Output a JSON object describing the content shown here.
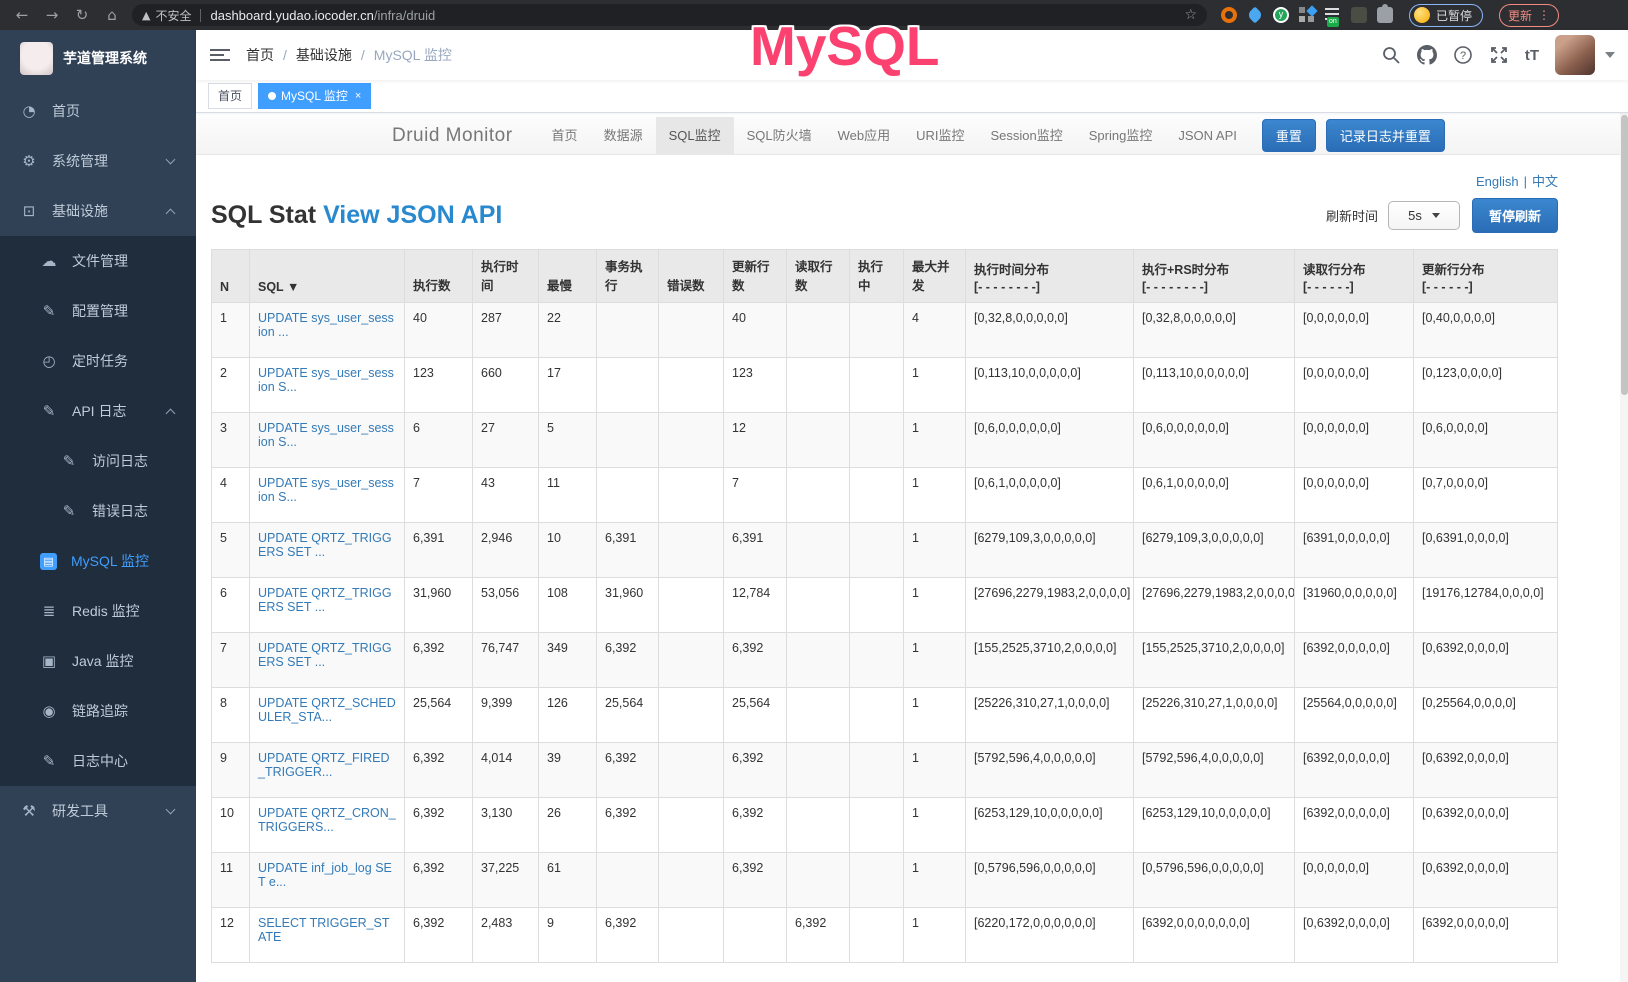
{
  "browser": {
    "security_label": "不安全",
    "url_host": "dashboard.yudao.iocoder.cn",
    "url_path": "/infra/druid",
    "paused_badge": "已暂停",
    "update_button": "更新",
    "extension_on_badge": "on",
    "extension_icons": [
      "bookmark-star-icon",
      "orange-ring-extension-icon",
      "blue-drop-extension-icon",
      "green-check-extension-icon",
      "grid-extension-icon",
      "list-on-extension-icon",
      "dark-extension-icon",
      "puzzle-extensions-icon"
    ]
  },
  "annotation": {
    "text": "MySQL",
    "color": "#fb4170"
  },
  "sidebar": {
    "title": "芋道管理系统",
    "items": [
      {
        "id": "home",
        "label": "首页",
        "icon": "dashboard-icon",
        "level": 0,
        "sub": false
      },
      {
        "id": "system-management",
        "label": "系统管理",
        "icon": "gear-icon",
        "level": 0,
        "chevron": "down",
        "sub": false
      },
      {
        "id": "infrastructure",
        "label": "基础设施",
        "icon": "infrastructure-icon",
        "level": 0,
        "chevron": "up",
        "sub": false
      },
      {
        "id": "file-management",
        "label": "文件管理",
        "icon": "cloud-upload-icon",
        "level": 1,
        "sub": true
      },
      {
        "id": "config-management",
        "label": "配置管理",
        "icon": "edit-icon",
        "level": 1,
        "sub": true
      },
      {
        "id": "scheduled-tasks",
        "label": "定时任务",
        "icon": "timer-icon",
        "level": 1,
        "sub": true
      },
      {
        "id": "api-logs",
        "label": "API 日志",
        "icon": "edit-square-icon",
        "level": 1,
        "chevron": "up",
        "sub": true
      },
      {
        "id": "access-logs",
        "label": "访问日志",
        "icon": "edit-square-icon",
        "level": 2,
        "sub": true
      },
      {
        "id": "error-logs",
        "label": "错误日志",
        "icon": "edit-square-icon",
        "level": 2,
        "sub": true
      },
      {
        "id": "mysql-monitor",
        "label": "MySQL 监控",
        "icon": "mysql-monitor-icon",
        "level": 1,
        "sub": true,
        "active": true
      },
      {
        "id": "redis-monitor",
        "label": "Redis 监控",
        "icon": "layers-icon",
        "level": 1,
        "sub": true
      },
      {
        "id": "java-monitor",
        "label": "Java 监控",
        "icon": "monitor-icon",
        "level": 1,
        "sub": true
      },
      {
        "id": "trace",
        "label": "链路追踪",
        "icon": "eye-icon",
        "level": 1,
        "sub": true
      },
      {
        "id": "log-center",
        "label": "日志中心",
        "icon": "edit-square-icon",
        "level": 1,
        "sub": true
      },
      {
        "id": "dev-tools",
        "label": "研发工具",
        "icon": "toolbox-icon",
        "level": 0,
        "chevron": "down",
        "sub": false
      }
    ]
  },
  "header": {
    "breadcrumb": [
      "首页",
      "基础设施",
      "MySQL 监控"
    ]
  },
  "tags": [
    {
      "label": "首页",
      "active": false
    },
    {
      "label": "MySQL 监控",
      "active": true
    }
  ],
  "druid": {
    "brand": "Druid Monitor",
    "nav": [
      "首页",
      "数据源",
      "SQL监控",
      "SQL防火墙",
      "Web应用",
      "URI监控",
      "Session监控",
      "Spring监控",
      "JSON API"
    ],
    "active_nav": "SQL监控",
    "reset_button": "重置",
    "log_reset_button": "记录日志并重置",
    "lang_en": "English",
    "lang_zh": "中文",
    "title": "SQL Stat",
    "title_link": "View JSON API",
    "refresh_label": "刷新时间",
    "refresh_value": "5s",
    "pause_button": "暂停刷新"
  },
  "table": {
    "headers": [
      {
        "label": "N",
        "sub": ""
      },
      {
        "label": "SQL ▼",
        "sub": ""
      },
      {
        "label": "执行数",
        "sub": ""
      },
      {
        "label": "执行时间",
        "sub": ""
      },
      {
        "label": "最慢",
        "sub": ""
      },
      {
        "label": "事务执行",
        "sub": ""
      },
      {
        "label": "错误数",
        "sub": ""
      },
      {
        "label": "更新行数",
        "sub": ""
      },
      {
        "label": "读取行数",
        "sub": ""
      },
      {
        "label": "执行中",
        "sub": ""
      },
      {
        "label": "最大并发",
        "sub": ""
      },
      {
        "label": "执行时间分布",
        "sub": "[- - - - - - - -]"
      },
      {
        "label": "执行+RS时分布",
        "sub": "[- - - - - - - -]"
      },
      {
        "label": "读取行分布",
        "sub": "[- - - - - -]"
      },
      {
        "label": "更新行分布",
        "sub": "[- - - - - -]"
      }
    ],
    "rows": [
      [
        "1",
        "UPDATE sys_user_session ...",
        "40",
        "287",
        "22",
        "",
        "",
        "40",
        "",
        "",
        "4",
        "[0,32,8,0,0,0,0,0]",
        "[0,32,8,0,0,0,0,0]",
        "[0,0,0,0,0,0]",
        "[0,40,0,0,0,0]"
      ],
      [
        "2",
        "UPDATE sys_user_session S...",
        "123",
        "660",
        "17",
        "",
        "",
        "123",
        "",
        "",
        "1",
        "[0,113,10,0,0,0,0,0]",
        "[0,113,10,0,0,0,0,0]",
        "[0,0,0,0,0,0]",
        "[0,123,0,0,0,0]"
      ],
      [
        "3",
        "UPDATE sys_user_session S...",
        "6",
        "27",
        "5",
        "",
        "",
        "12",
        "",
        "",
        "1",
        "[0,6,0,0,0,0,0,0]",
        "[0,6,0,0,0,0,0,0]",
        "[0,0,0,0,0,0]",
        "[0,6,0,0,0,0]"
      ],
      [
        "4",
        "UPDATE sys_user_session S...",
        "7",
        "43",
        "11",
        "",
        "",
        "7",
        "",
        "",
        "1",
        "[0,6,1,0,0,0,0,0]",
        "[0,6,1,0,0,0,0,0]",
        "[0,0,0,0,0,0]",
        "[0,7,0,0,0,0]"
      ],
      [
        "5",
        "UPDATE QRTZ_TRIGGERS SET ...",
        "6,391",
        "2,946",
        "10",
        "6,391",
        "",
        "6,391",
        "",
        "",
        "1",
        "[6279,109,3,0,0,0,0,0]",
        "[6279,109,3,0,0,0,0,0]",
        "[6391,0,0,0,0,0]",
        "[0,6391,0,0,0,0]"
      ],
      [
        "6",
        "UPDATE QRTZ_TRIGGERS SET ...",
        "31,960",
        "53,056",
        "108",
        "31,960",
        "",
        "12,784",
        "",
        "",
        "1",
        "[27696,2279,1983,2,0,0,0,0]",
        "[27696,2279,1983,2,0,0,0,0]",
        "[31960,0,0,0,0,0]",
        "[19176,12784,0,0,0,0]"
      ],
      [
        "7",
        "UPDATE QRTZ_TRIGGERS SET ...",
        "6,392",
        "76,747",
        "349",
        "6,392",
        "",
        "6,392",
        "",
        "",
        "1",
        "[155,2525,3710,2,0,0,0,0]",
        "[155,2525,3710,2,0,0,0,0]",
        "[6392,0,0,0,0,0]",
        "[0,6392,0,0,0,0]"
      ],
      [
        "8",
        "UPDATE QRTZ_SCHEDULER_STA...",
        "25,564",
        "9,399",
        "126",
        "25,564",
        "",
        "25,564",
        "",
        "",
        "1",
        "[25226,310,27,1,0,0,0,0]",
        "[25226,310,27,1,0,0,0,0]",
        "[25564,0,0,0,0,0]",
        "[0,25564,0,0,0,0]"
      ],
      [
        "9",
        "UPDATE QRTZ_FIRED_TRIGGER...",
        "6,392",
        "4,014",
        "39",
        "6,392",
        "",
        "6,392",
        "",
        "",
        "1",
        "[5792,596,4,0,0,0,0,0]",
        "[5792,596,4,0,0,0,0,0]",
        "[6392,0,0,0,0,0]",
        "[0,6392,0,0,0,0]"
      ],
      [
        "10",
        "UPDATE QRTZ_CRON_TRIGGERS...",
        "6,392",
        "3,130",
        "26",
        "6,392",
        "",
        "6,392",
        "",
        "",
        "1",
        "[6253,129,10,0,0,0,0,0]",
        "[6253,129,10,0,0,0,0,0]",
        "[6392,0,0,0,0,0]",
        "[0,6392,0,0,0,0]"
      ],
      [
        "11",
        "UPDATE inf_job_log SET e...",
        "6,392",
        "37,225",
        "61",
        "",
        "",
        "6,392",
        "",
        "",
        "1",
        "[0,5796,596,0,0,0,0,0]",
        "[0,5796,596,0,0,0,0,0]",
        "[0,0,0,0,0,0]",
        "[0,6392,0,0,0,0]"
      ],
      [
        "12",
        "SELECT TRIGGER_STATE",
        "6,392",
        "2,483",
        "9",
        "6,392",
        "",
        "",
        "6,392",
        "",
        "1",
        "[6220,172,0,0,0,0,0,0]",
        "[6392,0,0,0,0,0,0,0]",
        "[0,6392,0,0,0,0]",
        "[6392,0,0,0,0,0]"
      ]
    ]
  }
}
